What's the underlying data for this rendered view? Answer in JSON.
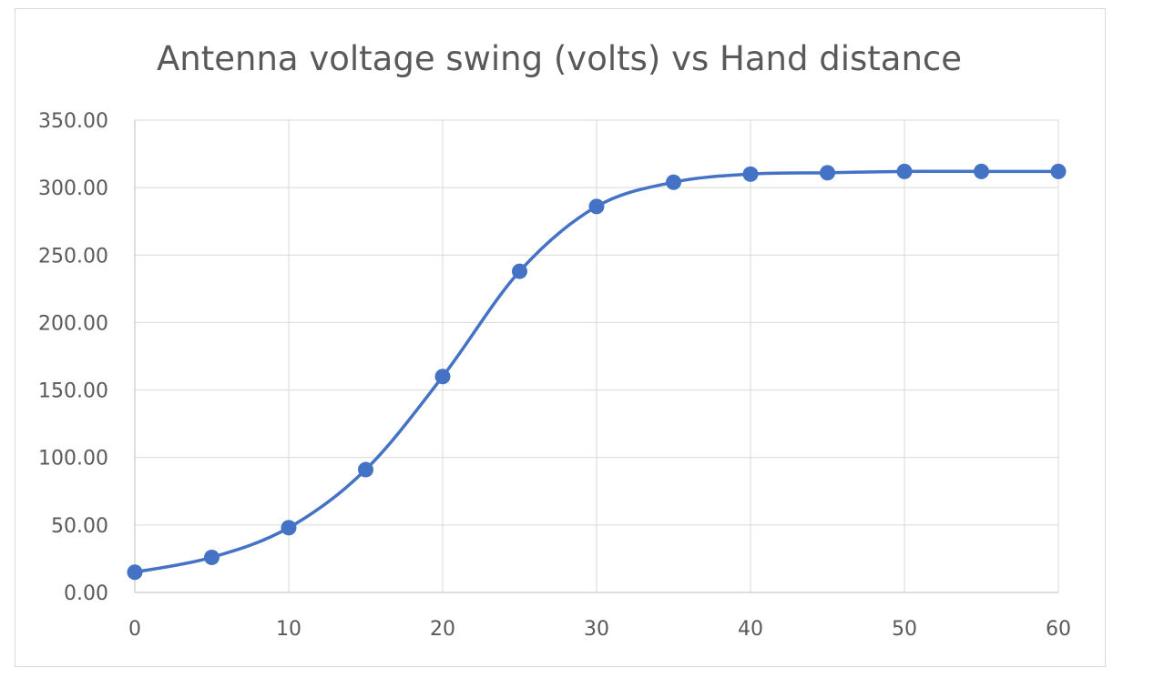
{
  "chart_data": {
    "type": "scatter",
    "title": "Antenna voltage swing (volts) vs Hand distance",
    "xlabel": "",
    "ylabel": "",
    "xlim": [
      0,
      60
    ],
    "ylim": [
      0,
      350
    ],
    "x_ticks": [
      0,
      10,
      20,
      30,
      40,
      50,
      60
    ],
    "y_ticks": [
      0,
      50,
      100,
      150,
      200,
      250,
      300,
      350
    ],
    "y_tick_labels": [
      "0.00",
      "50.00",
      "100.00",
      "150.00",
      "200.00",
      "250.00",
      "300.00",
      "350.00"
    ],
    "grid": true,
    "smooth_line": true,
    "series": [
      {
        "color": "#4472c4",
        "x": [
          0,
          5,
          10,
          15,
          20,
          25,
          30,
          35,
          40,
          45,
          50,
          55,
          60
        ],
        "y": [
          15,
          26,
          48,
          91,
          160,
          238,
          286,
          304,
          310,
          311,
          312,
          312,
          312
        ]
      }
    ]
  }
}
